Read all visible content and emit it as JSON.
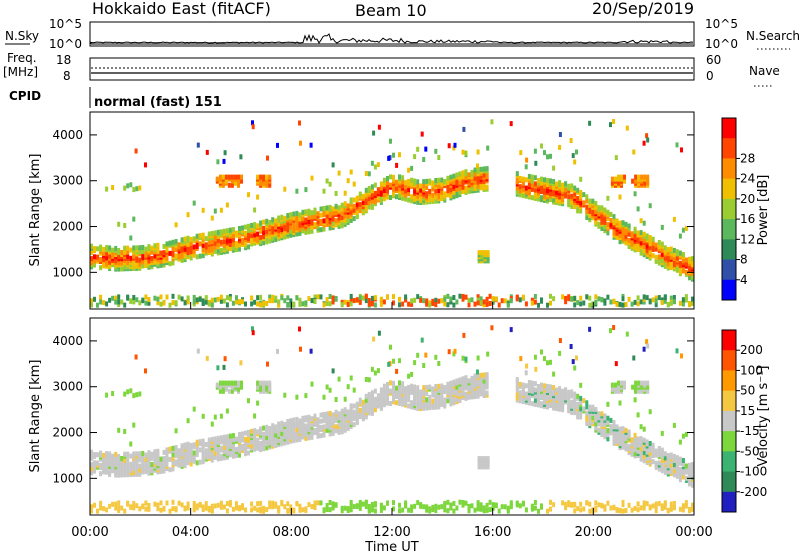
{
  "header": {
    "station": "Hokkaido East (fitACF)",
    "beam": "Beam 10",
    "date": "20/Sep/2019"
  },
  "noise_panel": {
    "left_label": "N.Sky",
    "right_label": "N.Search",
    "left_ticks": [
      "10^5",
      "10^0"
    ],
    "right_ticks": [
      "10^5",
      "10^0"
    ]
  },
  "freq_panel": {
    "left_label_line1": "Freq.",
    "left_label_line2": "[MHz]",
    "left_ticks": [
      "18",
      "8"
    ],
    "right_label": "Nave",
    "right_ticks": [
      "60",
      "0"
    ]
  },
  "cpid_panel": {
    "label": "CPID",
    "value": "normal (fast) 151"
  },
  "colors": {
    "power_scale": [
      "#0000ff",
      "#2f4fa8",
      "#2e8b57",
      "#5cb85c",
      "#9acd32",
      "#f0c000",
      "#ff8c00",
      "#ff4500",
      "#ff0000"
    ],
    "velocity_scale": [
      "#2020c0",
      "#2e8b57",
      "#3cb371",
      "#7cd63c",
      "#c8c8c8",
      "#f5c842",
      "#ff9900",
      "#ff5500",
      "#ff0000"
    ]
  },
  "chart_data": [
    {
      "type": "heatmap",
      "panel": "power",
      "ylabel": "Slant Range [km]",
      "y_ticks": [
        "1000",
        "2000",
        "3000",
        "4000"
      ],
      "ylim": [
        200,
        4500
      ],
      "xlim_hours": [
        0,
        24
      ],
      "colorbar_label": "Power [dB]",
      "colorbar_ticks": [
        "4",
        "8",
        "12",
        "16",
        "20",
        "24",
        "28"
      ],
      "bands": [
        {
          "x": [
            0,
            1,
            2,
            3,
            4,
            5,
            6,
            7,
            8,
            9,
            10,
            11,
            12,
            13,
            14,
            15,
            15.8
          ],
          "y": [
            1350,
            1300,
            1320,
            1400,
            1550,
            1650,
            1750,
            1900,
            2050,
            2150,
            2250,
            2600,
            2900,
            2750,
            2800,
            3000,
            3050
          ]
        },
        {
          "x": [
            16.8,
            18,
            19,
            20,
            21,
            22,
            23,
            24
          ],
          "y": [
            2950,
            2800,
            2700,
            2300,
            1900,
            1600,
            1300,
            1050
          ]
        }
      ],
      "ground_band_km": 350
    },
    {
      "type": "heatmap",
      "panel": "velocity",
      "ylabel": "Slant Range [km]",
      "y_ticks": [
        "1000",
        "2000",
        "3000",
        "4000"
      ],
      "ylim": [
        200,
        4500
      ],
      "xlim_hours": [
        0,
        24
      ],
      "xlabel": "Time UT",
      "x_ticks": [
        "00:00",
        "04:00",
        "08:00",
        "12:00",
        "16:00",
        "20:00",
        "00:00"
      ],
      "colorbar_label": "Velocity [m s⁻¹]",
      "colorbar_ticks": [
        "200",
        "100",
        "50",
        "15",
        "-15",
        "-50",
        "-100",
        "-200"
      ]
    }
  ]
}
